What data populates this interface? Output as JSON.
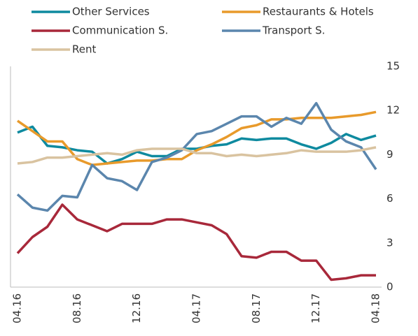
{
  "chart_data": {
    "type": "line",
    "categories": [
      "04.16",
      null,
      null,
      null,
      "08.16",
      null,
      null,
      null,
      "12.16",
      null,
      null,
      null,
      "04.17",
      null,
      null,
      null,
      "08.17",
      null,
      null,
      null,
      "12.17",
      null,
      null,
      null,
      "04.18"
    ],
    "series": [
      {
        "name": "Other Services",
        "color": "#0e8a9f",
        "values": [
          10.5,
          10.9,
          9.6,
          9.5,
          9.3,
          9.2,
          8.4,
          8.7,
          9.2,
          8.9,
          8.9,
          9.4,
          9.4,
          9.6,
          9.7,
          10.1,
          10.0,
          10.1,
          10.1,
          9.7,
          9.4,
          9.8,
          10.4,
          10.0,
          10.3
        ]
      },
      {
        "name": "Restaurants & Hotels",
        "color": "#e89a2b",
        "values": [
          11.3,
          10.6,
          9.9,
          9.9,
          8.7,
          8.3,
          8.4,
          8.5,
          8.6,
          8.6,
          8.7,
          8.7,
          9.3,
          9.7,
          10.2,
          10.8,
          11.0,
          11.4,
          11.4,
          11.5,
          11.5,
          11.5,
          11.6,
          11.7,
          11.9
        ]
      },
      {
        "name": "Communication S.",
        "color": "#a8283a",
        "values": [
          2.3,
          3.4,
          4.1,
          5.6,
          4.6,
          4.2,
          3.8,
          4.3,
          4.3,
          4.3,
          4.6,
          4.6,
          4.4,
          4.2,
          3.6,
          2.1,
          2.0,
          2.4,
          2.4,
          1.8,
          1.8,
          0.5,
          0.6,
          0.8,
          0.8
        ]
      },
      {
        "name": "Transport S.",
        "color": "#5b86ad",
        "values": [
          6.3,
          5.4,
          5.2,
          6.2,
          6.1,
          8.3,
          7.4,
          7.2,
          6.6,
          8.5,
          8.8,
          9.3,
          10.4,
          10.6,
          11.1,
          11.6,
          11.6,
          10.9,
          11.5,
          11.1,
          12.5,
          10.7,
          9.9,
          9.5,
          8.0
        ]
      },
      {
        "name": "Rent",
        "color": "#d9c3a0",
        "values": [
          8.4,
          8.5,
          8.8,
          8.8,
          8.9,
          9.0,
          9.1,
          9.0,
          9.3,
          9.4,
          9.4,
          9.4,
          9.1,
          9.1,
          8.9,
          9.0,
          8.9,
          9.0,
          9.1,
          9.3,
          9.2,
          9.2,
          9.2,
          9.3,
          9.5
        ]
      }
    ],
    "ylim": [
      0,
      15
    ],
    "yticks": [
      0,
      3,
      6,
      9,
      12,
      15
    ],
    "grid": false,
    "y_axis_side": "right"
  }
}
